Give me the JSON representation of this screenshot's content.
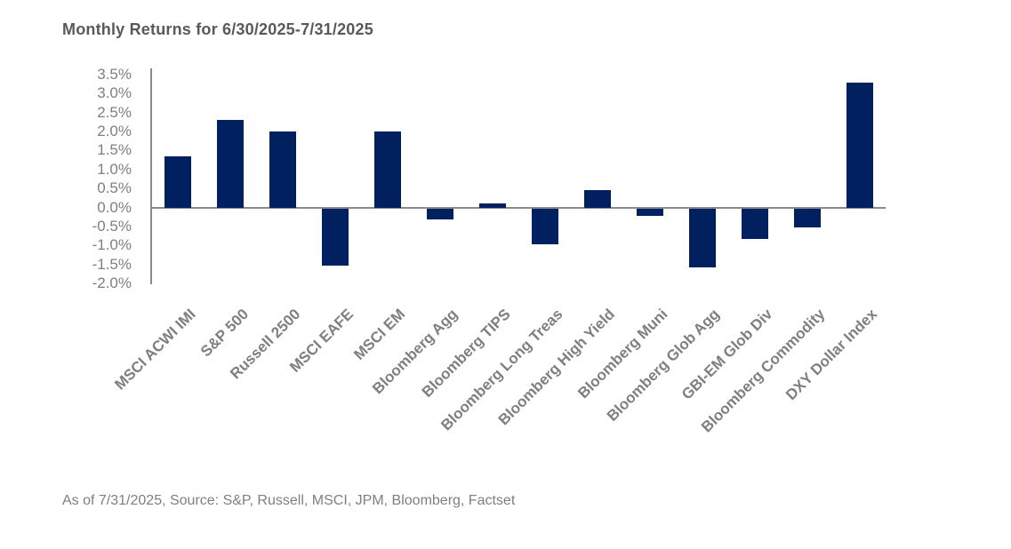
{
  "title": {
    "text": "Monthly Returns for 6/30/2025-7/31/2025"
  },
  "footer": {
    "text": "As of 7/31/2025, Source: S&P, Russell, MSCI, JPM, Bloomberg, Factset"
  },
  "colors": {
    "bar": "#002060",
    "title_text": "#595959",
    "axis_text": "#7f7f7f",
    "axis_line": "#8a8a8a"
  },
  "chart_data": {
    "type": "bar",
    "title": "Monthly Returns for 6/30/2025-7/31/2025",
    "categories": [
      "MSCI ACWI IMI",
      "S&P 500",
      "Russell 2500",
      "MSCI EAFE",
      "MSCI EM",
      "Bloomberg Agg",
      "Bloomberg TIPS",
      "Bloomberg Long Treas",
      "Bloomberg High Yield",
      "Bloomberg Muni",
      "Bloomberg Glob Agg",
      "GBI-EM Glob Div",
      "Bloomberg Commodity",
      "DXY Dollar Index"
    ],
    "values": [
      1.35,
      2.3,
      2.0,
      -1.5,
      2.0,
      -0.3,
      0.1,
      -0.95,
      0.45,
      -0.2,
      -1.55,
      -0.8,
      -0.5,
      3.3
    ],
    "unit": "%",
    "xlabel": "",
    "ylabel": "",
    "ylim": [
      -2.0,
      3.5
    ],
    "ytick_labels": [
      "3.5%",
      "3.0%",
      "2.5%",
      "2.0%",
      "1.5%",
      "1.0%",
      "0.5%",
      "0.0%",
      "-0.5%",
      "-1.0%",
      "-1.5%",
      "-2.0%"
    ],
    "grid": false,
    "legend": false,
    "x_label_rotation_deg": 45,
    "source_note": "As of 7/31/2025, Source: S&P, Russell, MSCI, JPM, Bloomberg, Factset"
  }
}
